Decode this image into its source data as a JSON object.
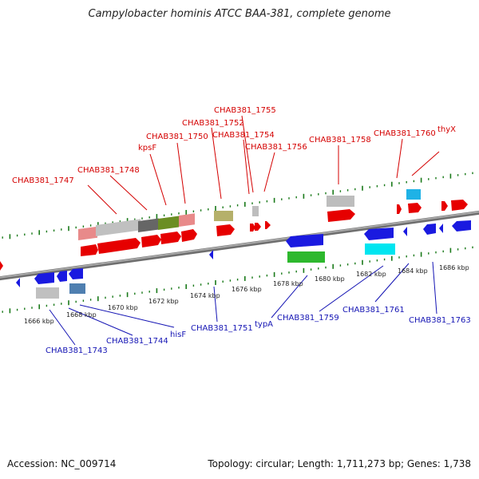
{
  "title": "Campylobacter hominis ATCC BAA-381, complete genome",
  "footer": {
    "accession": "Accession: NC_009714",
    "summary": "Topology: circular; Length: 1,711,273 bp; Genes: 1,738"
  },
  "colors": {
    "forward_label": "#d40000",
    "reverse_label": "#1414b4",
    "backbone": "#8a8a8a",
    "tick": "#1a7a1a"
  },
  "axis": {
    "unit": "kbp",
    "ticks": [
      {
        "label": "1666 kbp",
        "kbp": 1666
      },
      {
        "label": "1668 kbp",
        "kbp": 1668
      },
      {
        "label": "1670 kbp",
        "kbp": 1670
      },
      {
        "label": "1672 kbp",
        "kbp": 1672
      },
      {
        "label": "1674 kbp",
        "kbp": 1674
      },
      {
        "label": "1676 kbp",
        "kbp": 1676
      },
      {
        "label": "1678 kbp",
        "kbp": 1678
      },
      {
        "label": "1680 kbp",
        "kbp": 1680
      },
      {
        "label": "1682 kbp",
        "kbp": 1682
      },
      {
        "label": "1684 kbp",
        "kbp": 1684
      },
      {
        "label": "1686 kbp",
        "kbp": 1686
      }
    ]
  },
  "forward_labels": [
    {
      "text": "CHAB381_1747",
      "gene": "1747"
    },
    {
      "text": "CHAB381_1748",
      "gene": "1748"
    },
    {
      "text": "kpsF",
      "gene": "kpsF"
    },
    {
      "text": "CHAB381_1750",
      "gene": "1750"
    },
    {
      "text": "CHAB381_1752",
      "gene": "1752"
    },
    {
      "text": "CHAB381_1755",
      "gene": "1755"
    },
    {
      "text": "CHAB381_1754",
      "gene": "1754"
    },
    {
      "text": "CHAB381_1756",
      "gene": "1756"
    },
    {
      "text": "CHAB381_1758",
      "gene": "1758"
    },
    {
      "text": "CHAB381_1760",
      "gene": "1760"
    },
    {
      "text": "thyX",
      "gene": "thyX"
    }
  ],
  "reverse_labels": [
    {
      "text": "CHAB381_1743",
      "gene": "1743"
    },
    {
      "text": "CHAB381_1744",
      "gene": "1744"
    },
    {
      "text": "hisF",
      "gene": "hisF"
    },
    {
      "text": "CHAB381_1751",
      "gene": "1751"
    },
    {
      "text": "typA",
      "gene": "typA"
    },
    {
      "text": "CHAB381_1759",
      "gene": "1759"
    },
    {
      "text": "CHAB381_1761",
      "gene": "1761"
    },
    {
      "text": "CHAB381_1763",
      "gene": "1763"
    }
  ]
}
